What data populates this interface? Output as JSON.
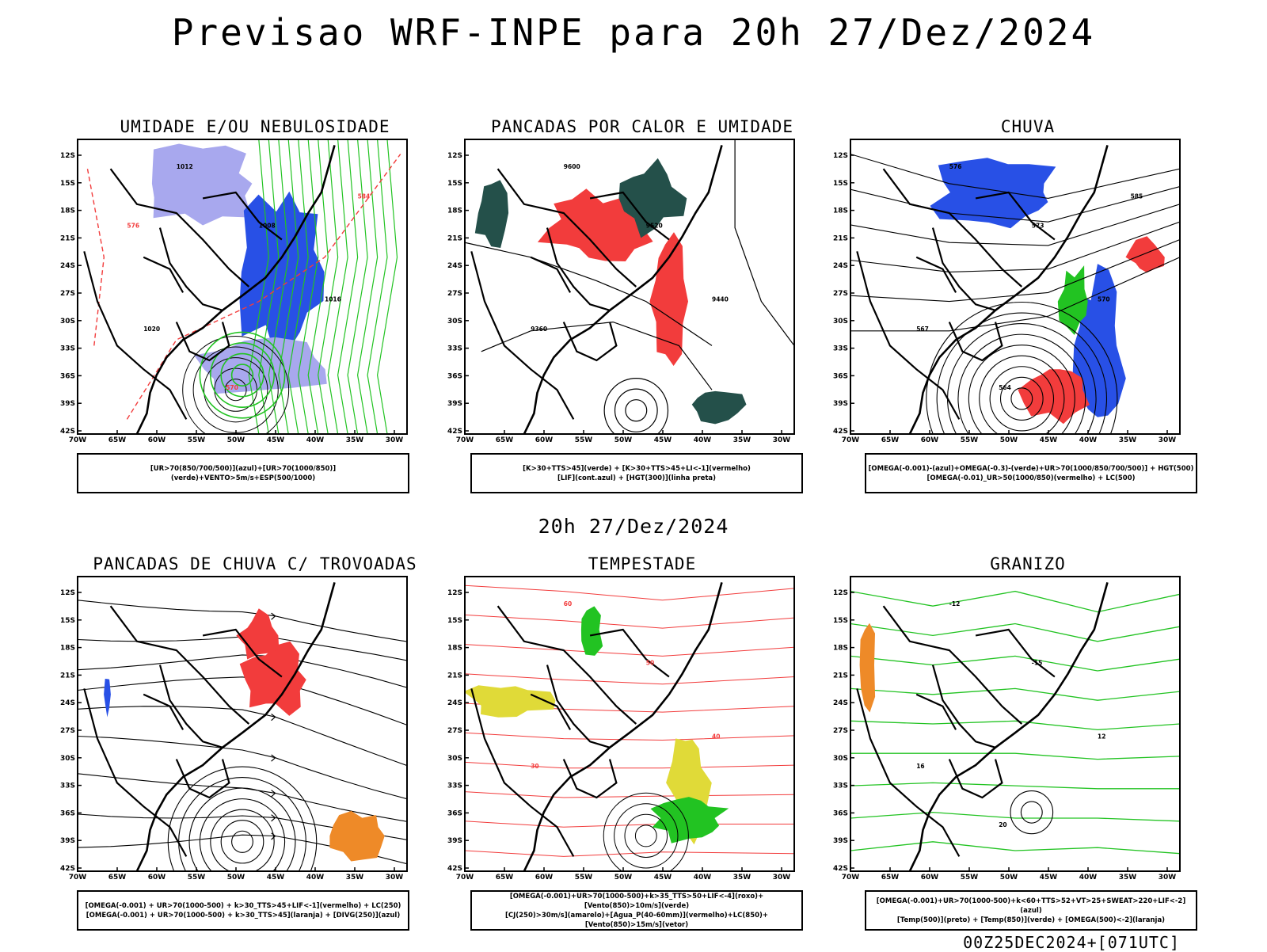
{
  "title": "Previsao WRF-INPE  para 20h 27/Dez/2024",
  "subtitle": "20h 27/Dez/2024",
  "footer": "00Z25DEC2024+[071UTC]",
  "axes": {
    "lat_labels": [
      "12S",
      "15S",
      "18S",
      "21S",
      "24S",
      "27S",
      "30S",
      "33S",
      "36S",
      "39S",
      "42S"
    ],
    "lon_labels": [
      "70W",
      "65W",
      "60W",
      "55W",
      "50W",
      "45W",
      "40W",
      "35W",
      "30W"
    ]
  },
  "colors": {
    "blue": "#2850e6",
    "lightblue": "#a8a8ee",
    "green": "#22c322",
    "red": "#f23c3c",
    "darkteal": "#24504a",
    "orange": "#ee8a28",
    "yellow": "#e0da38",
    "black": "#000000"
  },
  "panels": [
    {
      "id": "umidade",
      "title": "UMIDADE E/OU NEBULOSIDADE",
      "legend": [
        "[UR>70(850/700/500)](azul)+[UR>70(1000/850)](verde)+VENTO>5m/s+ESP(500/1000)"
      ],
      "labels": [
        "1012",
        "1008",
        "1016",
        "1020",
        "570",
        "584",
        "576"
      ]
    },
    {
      "id": "pancadas",
      "title": "PANCADAS POR CALOR E UMIDADE",
      "legend": [
        "[K>30+TTS>45](verde)  +  [K>30+TTS>45+LI<-1](vermelho)",
        "[LIF](cont.azul)  +  [HGT(300)](linha preta)"
      ],
      "labels": [
        "9600",
        "9520",
        "9440",
        "9360"
      ]
    },
    {
      "id": "chuva",
      "title": "CHUVA",
      "legend": [
        "[OMEGA(-0.001)-(azul)+OMEGA(-0.3)-(verde)+UR>70(1000/850/700/500)]  +  HGT(500)",
        "[OMEGA(-0.01)_UR>50(1000/850)(vermelho)  +  LC(500)"
      ],
      "labels": [
        "576",
        "573",
        "570",
        "567",
        "564",
        "585"
      ]
    },
    {
      "id": "trovoadas",
      "title": "PANCADAS DE CHUVA C/ TROVOADAS",
      "legend": [
        "[OMEGA(-0.001)  +  UR>70(1000-500)  +  k>30_TTS>45+LIF<-1](vermelho)  +  LC(250)",
        "[OMEGA(-0.001)  +  UR>70(1000-500)  +  k>30_TTS>45](laranja)  +  [DIVG(250)](azul)"
      ],
      "labels": []
    },
    {
      "id": "tempestade",
      "title": "TEMPESTADE",
      "legend": [
        "[OMEGA(-0.001)+UR>70(1000-500)+k>35_TTS>50+LIF<-4](roxo)+[Vento(850)>10m/s](verde)",
        "[CJ(250)>30m/s](amarelo)+[Agua_P(40-60mm)](vermelho)+LC(850)+[Vento(850)>15m/s](vetor)"
      ],
      "labels": [
        "60",
        "50",
        "40",
        "30"
      ]
    },
    {
      "id": "granizo",
      "title": "GRANIZO",
      "legend": [
        "[OMEGA(-0.001)+UR>70(1000-500)+k<60+TTS>52+VT>25+SWEAT>220+LIF<-2](azul)",
        "[Temp(500)](preto)  +  [Temp(850)](verde)  +  [OMEGA(500)<-2](laranja)"
      ],
      "labels": [
        "-12",
        "-15",
        "12",
        "16",
        "20"
      ]
    }
  ]
}
